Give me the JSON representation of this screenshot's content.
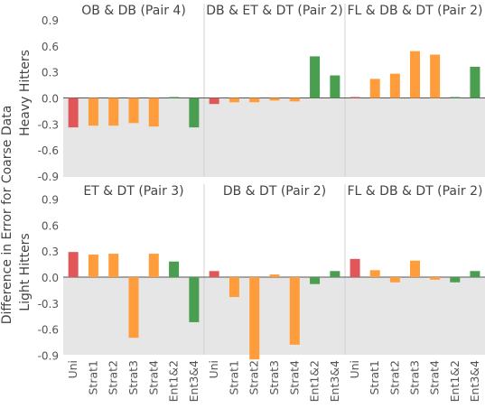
{
  "chart_data": {
    "type": "bar",
    "ylabel": "Difference in Error for Coarse Data",
    "yticks": [
      0.9,
      0.6,
      0.3,
      0.0,
      -0.3,
      -0.6,
      -0.9
    ],
    "ylim": [
      -1.0,
      1.0
    ],
    "categories": [
      "Uni",
      "Strat1",
      "Strat2",
      "Strat3",
      "Strat4",
      "Ent1&2",
      "Ent3&4"
    ],
    "category_colors": [
      "#e15759",
      "#ff9d3c",
      "#ff9d3c",
      "#ff9d3c",
      "#ff9d3c",
      "#499e4f",
      "#499e4f"
    ],
    "colors": {
      "uni": "#e15759",
      "strat": "#ff9d3c",
      "ent": "#499e4f",
      "negative_region": "#e6e6e6",
      "divider": "#d0d0d0"
    },
    "rows": [
      {
        "label": "Heavy Hitters",
        "panels": [
          {
            "title": "OB & DB (Pair 4)",
            "values": [
              -0.34,
              -0.32,
              -0.32,
              -0.29,
              -0.33,
              0.01,
              -0.34
            ]
          },
          {
            "title": "DB & ET & DT (Pair 2)",
            "values": [
              -0.07,
              -0.05,
              -0.05,
              -0.03,
              -0.04,
              0.48,
              0.26
            ]
          },
          {
            "title": "FL & DB & DT (Pair 2)",
            "values": [
              0.01,
              0.22,
              0.28,
              0.54,
              0.5,
              0.01,
              0.36
            ]
          }
        ]
      },
      {
        "label": "Light Hitters",
        "panels": [
          {
            "title": "ET & DT (Pair 3)",
            "values": [
              0.29,
              0.26,
              0.27,
              -0.7,
              0.27,
              0.18,
              -0.52
            ]
          },
          {
            "title": "DB & DT (Pair 2)",
            "values": [
              0.07,
              -0.23,
              -0.95,
              0.03,
              -0.78,
              -0.08,
              0.07
            ]
          },
          {
            "title": "FL & DB & DT (Pair 2)",
            "values": [
              0.21,
              0.08,
              -0.06,
              0.19,
              -0.03,
              -0.06,
              0.07
            ]
          }
        ]
      }
    ],
    "grid": false
  }
}
